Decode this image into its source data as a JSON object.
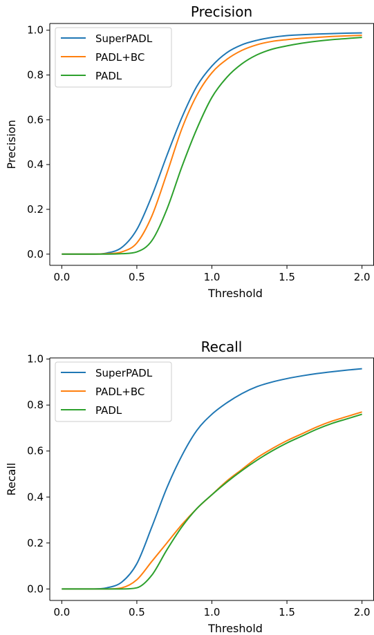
{
  "chart_data": [
    {
      "type": "line",
      "title": "Precision",
      "xlabel": "Threshold",
      "ylabel": "Precision",
      "xlim": [
        -0.08,
        2.08
      ],
      "ylim": [
        -0.05,
        1.03
      ],
      "xticks": [
        0.0,
        0.5,
        1.0,
        1.5,
        2.0
      ],
      "xtick_labels": [
        "0.0",
        "0.5",
        "1.0",
        "1.5",
        "2.0"
      ],
      "yticks": [
        0.0,
        0.2,
        0.4,
        0.6,
        0.8,
        1.0
      ],
      "ytick_labels": [
        "0.0",
        "0.2",
        "0.4",
        "0.6",
        "0.8",
        "1.0"
      ],
      "grid": false,
      "legend_position": "top-left",
      "x": [
        0,
        0.1,
        0.2,
        0.3,
        0.4,
        0.5,
        0.6,
        0.7,
        0.8,
        0.9,
        1.0,
        1.1,
        1.2,
        1.3,
        1.4,
        1.5,
        1.6,
        1.7,
        1.8,
        1.9,
        2.0
      ],
      "series": [
        {
          "name": "SuperPADL",
          "color": "#1f77b4",
          "values": [
            0,
            0,
            0,
            0.005,
            0.03,
            0.11,
            0.26,
            0.44,
            0.61,
            0.75,
            0.84,
            0.9,
            0.935,
            0.955,
            0.968,
            0.976,
            0.98,
            0.983,
            0.985,
            0.987,
            0.988
          ]
        },
        {
          "name": "PADL+BC",
          "color": "#ff7f0e",
          "values": [
            0,
            0,
            0,
            0.002,
            0.01,
            0.05,
            0.17,
            0.36,
            0.56,
            0.71,
            0.81,
            0.87,
            0.91,
            0.935,
            0.95,
            0.958,
            0.964,
            0.968,
            0.972,
            0.975,
            0.977
          ]
        },
        {
          "name": "PADL",
          "color": "#2ca02c",
          "values": [
            0,
            0,
            0,
            0,
            0.002,
            0.01,
            0.06,
            0.2,
            0.39,
            0.56,
            0.7,
            0.79,
            0.85,
            0.89,
            0.915,
            0.93,
            0.942,
            0.951,
            0.958,
            0.963,
            0.968
          ]
        }
      ]
    },
    {
      "type": "line",
      "title": "Recall",
      "xlabel": "Threshold",
      "ylabel": "Recall",
      "xlim": [
        -0.08,
        2.08
      ],
      "ylim": [
        -0.05,
        1.005
      ],
      "xticks": [
        0.0,
        0.5,
        1.0,
        1.5,
        2.0
      ],
      "xtick_labels": [
        "0.0",
        "0.5",
        "1.0",
        "1.5",
        "2.0"
      ],
      "yticks": [
        0.0,
        0.2,
        0.4,
        0.6,
        0.8,
        1.0
      ],
      "ytick_labels": [
        "0.0",
        "0.2",
        "0.4",
        "0.6",
        "0.8",
        "1.0"
      ],
      "grid": false,
      "legend_position": "top-left",
      "x": [
        0,
        0.1,
        0.2,
        0.3,
        0.4,
        0.5,
        0.6,
        0.7,
        0.8,
        0.9,
        1.0,
        1.1,
        1.2,
        1.3,
        1.4,
        1.5,
        1.6,
        1.7,
        1.8,
        1.9,
        2.0
      ],
      "series": [
        {
          "name": "SuperPADL",
          "color": "#1f77b4",
          "values": [
            0,
            0,
            0,
            0.005,
            0.03,
            0.11,
            0.27,
            0.44,
            0.58,
            0.69,
            0.76,
            0.81,
            0.85,
            0.88,
            0.9,
            0.915,
            0.927,
            0.937,
            0.945,
            0.952,
            0.958
          ]
        },
        {
          "name": "PADL+BC",
          "color": "#ff7f0e",
          "values": [
            0,
            0,
            0,
            0,
            0.005,
            0.04,
            0.12,
            0.2,
            0.28,
            0.35,
            0.41,
            0.47,
            0.52,
            0.57,
            0.61,
            0.645,
            0.675,
            0.705,
            0.73,
            0.75,
            0.77
          ]
        },
        {
          "name": "PADL",
          "color": "#2ca02c",
          "values": [
            0,
            0,
            0,
            0,
            0,
            0.005,
            0.06,
            0.17,
            0.27,
            0.35,
            0.41,
            0.465,
            0.515,
            0.56,
            0.6,
            0.635,
            0.665,
            0.695,
            0.72,
            0.74,
            0.76
          ]
        }
      ]
    }
  ]
}
